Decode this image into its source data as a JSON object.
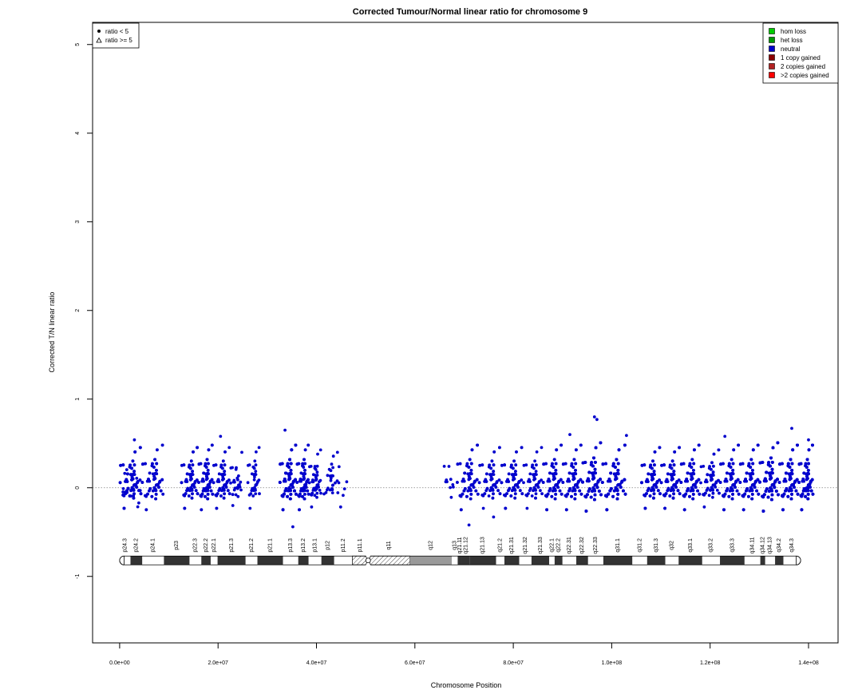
{
  "chart_data": {
    "type": "scatter",
    "title": "Corrected Tumour/Normal linear ratio for chromosome  9",
    "xlabel": "Chromosome Position",
    "ylabel": "Corrected T/N linear ratio",
    "xlim": [
      -5500000,
      146000000
    ],
    "ylim": [
      -1.75,
      5.25
    ],
    "x_ticks": [
      0,
      20000000,
      40000000,
      60000000,
      80000000,
      100000000,
      120000000,
      140000000
    ],
    "x_tick_labels": [
      "0.0e+00",
      "2.0e+07",
      "4.0e+07",
      "6.0e+07",
      "8.0e+07",
      "1.0e+08",
      "1.2e+08",
      "1.4e+08"
    ],
    "y_ticks": [
      -1,
      0,
      1,
      2,
      3,
      4,
      5
    ],
    "y_tick_labels": [
      "-1",
      "0",
      "1",
      "2",
      "3",
      "4",
      "5"
    ],
    "reference_line": 0,
    "point_color": "#0000CD",
    "shape_legend": {
      "position": "top-left",
      "entries": [
        {
          "label": "ratio < 5",
          "symbol": "filled-circle"
        },
        {
          "label": "ratio >= 5",
          "symbol": "open-triangle"
        }
      ]
    },
    "legend": {
      "position": "top-right",
      "entries": [
        {
          "label": "hom loss",
          "color": "#00CC00"
        },
        {
          "label": "het loss",
          "color": "#009900"
        },
        {
          "label": "neutral",
          "color": "#0000CD"
        },
        {
          "label": "1 copy gained",
          "color": "#8B0000"
        },
        {
          "label": "2 copies gained",
          "color": "#B22222"
        },
        {
          "label": ">2 copies gained",
          "color": "#FF0000"
        }
      ]
    },
    "point_clusters": [
      {
        "start": 0,
        "end": 4500000,
        "density": 160,
        "sd": 0.16
      },
      {
        "start": 4500000,
        "end": 9000000,
        "density": 110,
        "sd": 0.17
      },
      {
        "start": 12500000,
        "end": 16000000,
        "density": 110,
        "sd": 0.16
      },
      {
        "start": 16000000,
        "end": 19000000,
        "density": 130,
        "sd": 0.17
      },
      {
        "start": 19000000,
        "end": 22500000,
        "density": 80,
        "sd": 0.16
      },
      {
        "start": 22500000,
        "end": 25000000,
        "density": 25,
        "sd": 0.14
      },
      {
        "start": 26000000,
        "end": 28500000,
        "density": 35,
        "sd": 0.16
      },
      {
        "start": 32500000,
        "end": 36000000,
        "density": 300,
        "sd": 0.17
      },
      {
        "start": 36000000,
        "end": 38500000,
        "density": 110,
        "sd": 0.17
      },
      {
        "start": 38500000,
        "end": 41000000,
        "density": 40,
        "sd": 0.15
      },
      {
        "start": 41000000,
        "end": 44500000,
        "density": 25,
        "sd": 0.14
      },
      {
        "start": 44500000,
        "end": 46500000,
        "density": 6,
        "sd": 0.15
      },
      {
        "start": 65500000,
        "end": 68500000,
        "density": 10,
        "sd": 0.15
      },
      {
        "start": 68500000,
        "end": 73000000,
        "density": 120,
        "sd": 0.17
      },
      {
        "start": 73000000,
        "end": 77500000,
        "density": 80,
        "sd": 0.16
      },
      {
        "start": 77500000,
        "end": 82000000,
        "density": 100,
        "sd": 0.16
      },
      {
        "start": 82000000,
        "end": 86000000,
        "density": 50,
        "sd": 0.16
      },
      {
        "start": 86000000,
        "end": 90000000,
        "density": 130,
        "sd": 0.17
      },
      {
        "start": 90000000,
        "end": 94000000,
        "density": 130,
        "sd": 0.17
      },
      {
        "start": 94000000,
        "end": 98000000,
        "density": 300,
        "sd": 0.18
      },
      {
        "start": 98000000,
        "end": 103000000,
        "density": 260,
        "sd": 0.17
      },
      {
        "start": 106000000,
        "end": 110000000,
        "density": 140,
        "sd": 0.16
      },
      {
        "start": 110000000,
        "end": 114000000,
        "density": 150,
        "sd": 0.16
      },
      {
        "start": 114000000,
        "end": 118000000,
        "density": 170,
        "sd": 0.17
      },
      {
        "start": 118000000,
        "end": 122000000,
        "density": 70,
        "sd": 0.15
      },
      {
        "start": 122000000,
        "end": 126000000,
        "density": 160,
        "sd": 0.17
      },
      {
        "start": 126000000,
        "end": 130000000,
        "density": 190,
        "sd": 0.17
      },
      {
        "start": 130000000,
        "end": 134000000,
        "density": 360,
        "sd": 0.18
      },
      {
        "start": 134000000,
        "end": 138000000,
        "density": 300,
        "sd": 0.17
      },
      {
        "start": 138000000,
        "end": 141000000,
        "density": 250,
        "sd": 0.17
      }
    ],
    "outliers": [
      {
        "x": 96500000,
        "y": 0.8
      },
      {
        "x": 97000000,
        "y": 0.77
      },
      {
        "x": 33600000,
        "y": 0.65
      },
      {
        "x": 136600000,
        "y": 0.67
      },
      {
        "x": 91500000,
        "y": 0.6
      },
      {
        "x": 103000000,
        "y": 0.59
      },
      {
        "x": 123000000,
        "y": 0.58
      },
      {
        "x": 20500000,
        "y": 0.58
      },
      {
        "x": 3000000,
        "y": 0.54
      },
      {
        "x": 140000000,
        "y": 0.54
      },
      {
        "x": 35200000,
        "y": -0.44
      },
      {
        "x": 76000000,
        "y": -0.33
      },
      {
        "x": 71000000,
        "y": -0.42
      }
    ],
    "ideogram": {
      "y": -0.82,
      "label_y": -0.65,
      "centromere": 50500000,
      "bands": [
        {
          "name": "p24.3",
          "start": 0,
          "end": 2200000,
          "stain": "gneg"
        },
        {
          "name": "p24.2",
          "start": 2200000,
          "end": 4600000,
          "stain": "gpos100"
        },
        {
          "name": "p24.1",
          "start": 4600000,
          "end": 9000000,
          "stain": "gneg"
        },
        {
          "name": "p23",
          "start": 9000000,
          "end": 14200000,
          "stain": "gpos100"
        },
        {
          "name": "p22.3",
          "start": 14200000,
          "end": 16600000,
          "stain": "gneg"
        },
        {
          "name": "p22.2",
          "start": 16600000,
          "end": 18500000,
          "stain": "gpos100"
        },
        {
          "name": "p22.1",
          "start": 18500000,
          "end": 19900000,
          "stain": "gneg"
        },
        {
          "name": "p21.3",
          "start": 19900000,
          "end": 25600000,
          "stain": "gpos100"
        },
        {
          "name": "p21.2",
          "start": 25600000,
          "end": 28000000,
          "stain": "gneg"
        },
        {
          "name": "p21.1",
          "start": 28000000,
          "end": 33200000,
          "stain": "gpos100"
        },
        {
          "name": "p13.3",
          "start": 33200000,
          "end": 36300000,
          "stain": "gneg"
        },
        {
          "name": "p13.2",
          "start": 36300000,
          "end": 38400000,
          "stain": "gpos100"
        },
        {
          "name": "p13.1",
          "start": 38400000,
          "end": 41000000,
          "stain": "gneg"
        },
        {
          "name": "p12",
          "start": 41000000,
          "end": 43600000,
          "stain": "gpos100"
        },
        {
          "name": "p11.2",
          "start": 43600000,
          "end": 47300000,
          "stain": "gneg"
        },
        {
          "name": "p11.1",
          "start": 47300000,
          "end": 50500000,
          "stain": "acen"
        },
        {
          "name": "q11",
          "start": 50500000,
          "end": 59000000,
          "stain": "acen"
        },
        {
          "name": "q12",
          "start": 59000000,
          "end": 67500000,
          "stain": "gvar"
        },
        {
          "name": "q13",
          "start": 67500000,
          "end": 68700000,
          "stain": "gneg"
        },
        {
          "name": "q21.11",
          "start": 68700000,
          "end": 69600000,
          "stain": "gpos100"
        },
        {
          "name": "q21.12",
          "start": 69600000,
          "end": 71100000,
          "stain": "gpos100"
        },
        {
          "name": "q21.13",
          "start": 71100000,
          "end": 76500000,
          "stain": "gpos100"
        },
        {
          "name": "q21.2",
          "start": 76500000,
          "end": 78200000,
          "stain": "gneg"
        },
        {
          "name": "q21.31",
          "start": 78200000,
          "end": 81200000,
          "stain": "gpos100"
        },
        {
          "name": "q21.32",
          "start": 81200000,
          "end": 83700000,
          "stain": "gneg"
        },
        {
          "name": "q21.33",
          "start": 83700000,
          "end": 87300000,
          "stain": "gpos100"
        },
        {
          "name": "q22.1",
          "start": 87300000,
          "end": 88400000,
          "stain": "gneg"
        },
        {
          "name": "q22.2",
          "start": 88400000,
          "end": 90000000,
          "stain": "gpos100"
        },
        {
          "name": "q22.31",
          "start": 90000000,
          "end": 92800000,
          "stain": "gneg"
        },
        {
          "name": "q22.32",
          "start": 92800000,
          "end": 95200000,
          "stain": "gpos100"
        },
        {
          "name": "q22.33",
          "start": 95200000,
          "end": 98300000,
          "stain": "gneg"
        },
        {
          "name": "q31.1",
          "start": 98300000,
          "end": 104200000,
          "stain": "gpos100"
        },
        {
          "name": "q31.2",
          "start": 104200000,
          "end": 107200000,
          "stain": "gneg"
        },
        {
          "name": "q31.3",
          "start": 107200000,
          "end": 110900000,
          "stain": "gpos100"
        },
        {
          "name": "q32",
          "start": 110900000,
          "end": 113600000,
          "stain": "gneg"
        },
        {
          "name": "q33.1",
          "start": 113600000,
          "end": 118400000,
          "stain": "gpos100"
        },
        {
          "name": "q33.2",
          "start": 118400000,
          "end": 122000000,
          "stain": "gneg"
        },
        {
          "name": "q33.3",
          "start": 122000000,
          "end": 127000000,
          "stain": "gpos100"
        },
        {
          "name": "q34.11",
          "start": 127000000,
          "end": 130200000,
          "stain": "gneg"
        },
        {
          "name": "q34.12",
          "start": 130200000,
          "end": 131200000,
          "stain": "gpos100"
        },
        {
          "name": "q34.13",
          "start": 131200000,
          "end": 133200000,
          "stain": "gneg"
        },
        {
          "name": "q34.2",
          "start": 133200000,
          "end": 134900000,
          "stain": "gpos100"
        },
        {
          "name": "q34.3",
          "start": 134900000,
          "end": 138400000,
          "stain": "gneg"
        }
      ]
    }
  }
}
